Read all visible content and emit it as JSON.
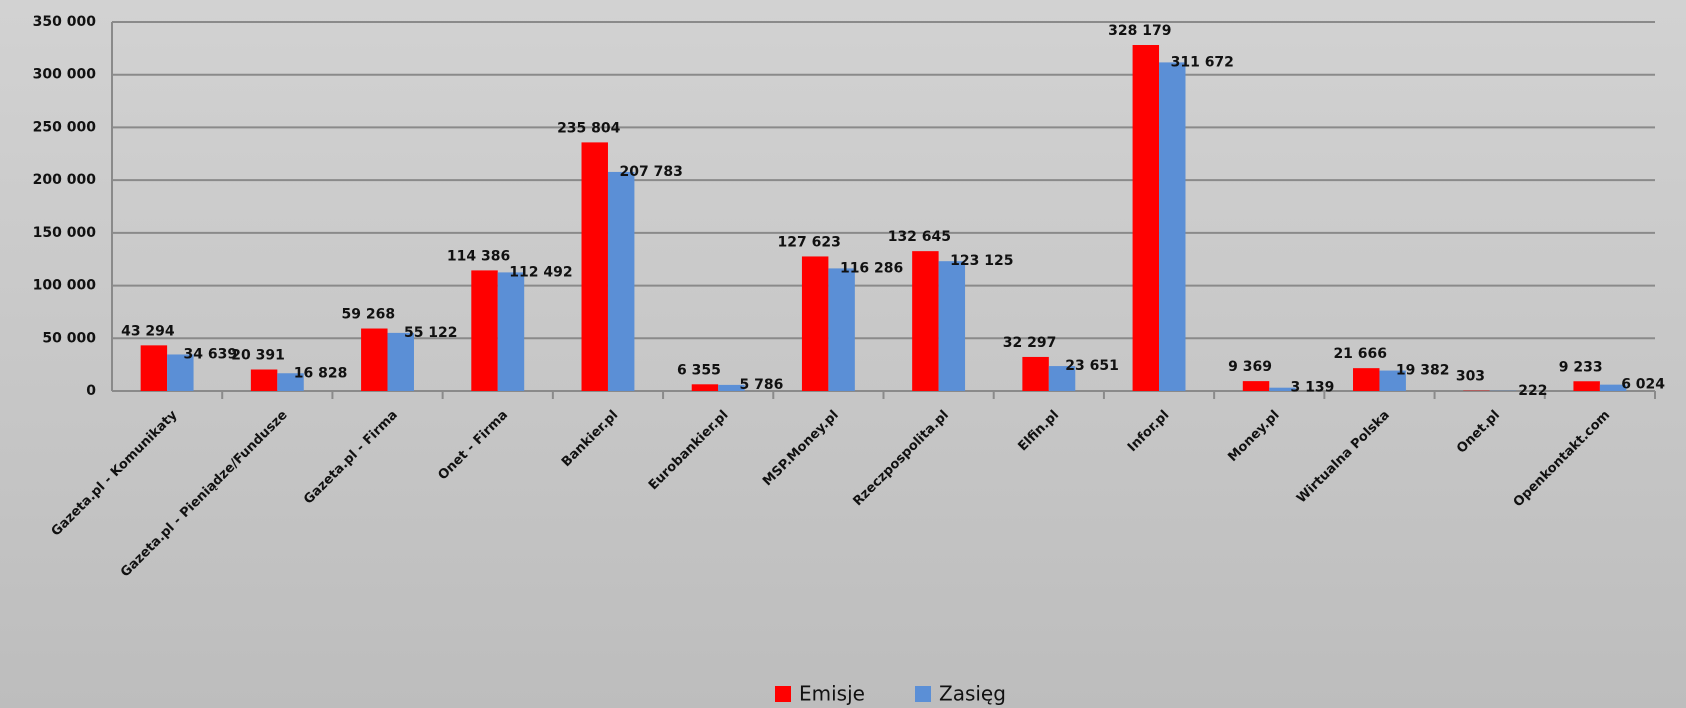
{
  "chart_data": {
    "type": "bar",
    "categories": [
      "Gazeta.pl - Komunikaty",
      "Gazeta.pl - Pieniądze/Fundusze",
      "Gazeta.pl - Firma",
      "Onet - Firma",
      "Bankier.pl",
      "Eurobankier.pl",
      "MSP.Money.pl",
      "Rzeczpospolita.pl",
      "Elfin.pl",
      "Infor.pl",
      "Money.pl",
      "Wirtualna Polska",
      "Onet.pl",
      "Openkontakt.com"
    ],
    "series": [
      {
        "name": "Emisje",
        "color": "#ff0000",
        "values": [
          43294,
          20391,
          59268,
          114386,
          235804,
          6355,
          127623,
          132645,
          32297,
          328179,
          9369,
          21666,
          303,
          9233
        ],
        "value_labels": [
          "43 294",
          "20 391",
          "59 268",
          "114 386",
          "235 804",
          "6 355",
          "127 623",
          "132 645",
          "32 297",
          "328 179",
          "9 369",
          "21 666",
          "303",
          "9 233"
        ]
      },
      {
        "name": "Zasięg",
        "color": "#5b8fd6",
        "values": [
          34639,
          16828,
          55122,
          112492,
          207783,
          5786,
          116286,
          123125,
          23651,
          311672,
          3139,
          19382,
          222,
          6024
        ],
        "value_labels": [
          "34 639",
          "16 828",
          "55 122",
          "112 492",
          "207 783",
          "5 786",
          "116 286",
          "123 125",
          "23 651",
          "311 672",
          "3 139",
          "19 382",
          "222",
          "6 024"
        ]
      }
    ],
    "ylim": [
      0,
      350000
    ],
    "yticks": [
      0,
      {
        "value": 50000,
        "label": "50 000"
      },
      {
        "value": 100000,
        "label": "100 000"
      },
      {
        "value": 150000,
        "label": "150 000"
      },
      {
        "value": 200000,
        "label": "200 000"
      },
      {
        "value": 250000,
        "label": "250 000"
      },
      {
        "value": 300000,
        "label": "300 000"
      },
      {
        "value": 350000,
        "label": "350 000"
      }
    ],
    "grid": true,
    "legend": "bottom"
  }
}
